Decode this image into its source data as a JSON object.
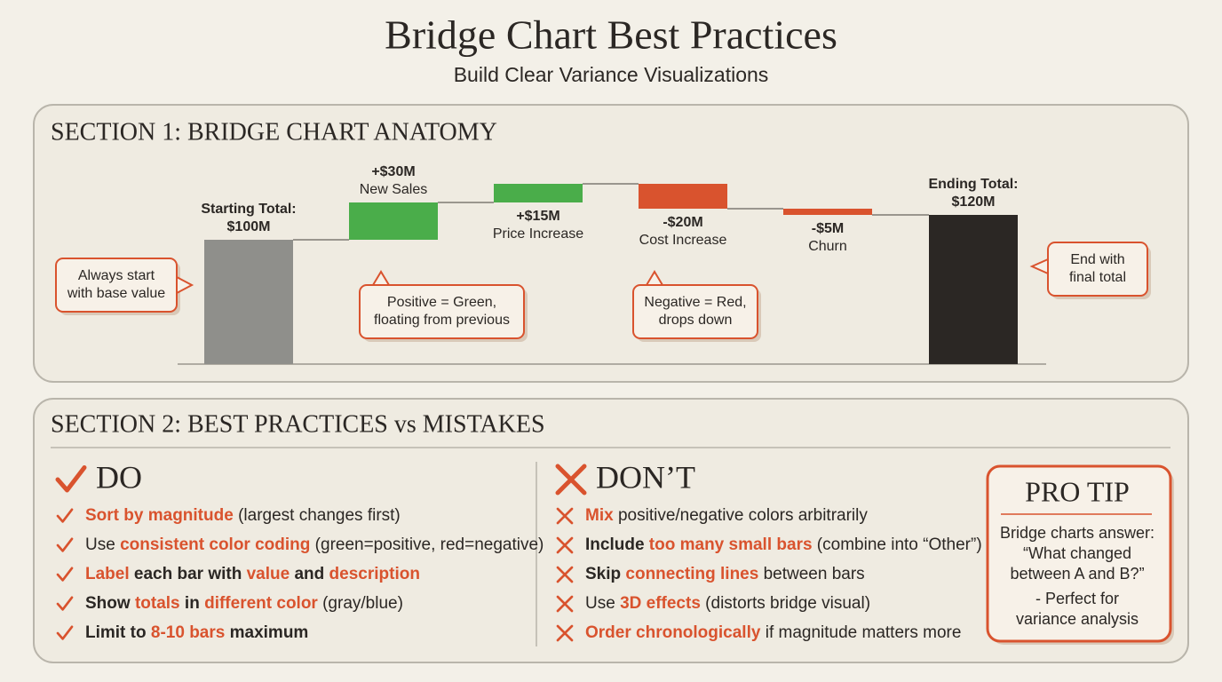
{
  "header": {
    "title": "Bridge Chart Best Practices",
    "subtitle": "Build Clear Variance Visualizations"
  },
  "section1": {
    "title": "SECTION 1: BRIDGE CHART ANATOMY"
  },
  "chart_data": {
    "type": "waterfall",
    "categories": [
      "Starting Total:",
      "New Sales",
      "Price Increase",
      "Cost Increase",
      "Churn",
      "Ending Total:"
    ],
    "values": [
      100,
      30,
      15,
      -20,
      -5,
      120
    ],
    "value_labels": [
      "$100M",
      "+$30M",
      "+$15M",
      "-$20M",
      "-$5M",
      "$120M"
    ],
    "totals": [
      true,
      false,
      false,
      false,
      false,
      true
    ],
    "colors": [
      "#8f8f8b",
      "#4aad4a",
      "#4aad4a",
      "#d9532e",
      "#d9532e",
      "#2b2724"
    ],
    "connectors": true,
    "annotations": [
      [
        "Always start",
        "with base value"
      ],
      [
        "Positive = Green,",
        "floating from previous"
      ],
      [
        "Negative = Red,",
        "drops down"
      ],
      [
        "End with",
        "final total"
      ]
    ]
  },
  "section2": {
    "title": "SECTION 2: BEST PRACTICES vs MISTAKES",
    "do": {
      "title": "DO",
      "items": [
        [
          {
            "text": "Sort by magnitude",
            "style": "highlight"
          },
          {
            "text": " (largest changes first)"
          }
        ],
        [
          {
            "text": "Use "
          },
          {
            "text": "consistent color coding",
            "style": "highlight"
          },
          {
            "text": " (green=positive, red=negative)"
          }
        ],
        [
          {
            "text": "Label",
            "style": "highlight"
          },
          {
            "text": " each bar with ",
            "style": "bold"
          },
          {
            "text": "value",
            "style": "highlight"
          },
          {
            "text": " and ",
            "style": "bold"
          },
          {
            "text": "description",
            "style": "highlight"
          }
        ],
        [
          {
            "text": "Show ",
            "style": "bold"
          },
          {
            "text": "totals",
            "style": "highlight"
          },
          {
            "text": " in ",
            "style": "bold"
          },
          {
            "text": "different color",
            "style": "highlight"
          },
          {
            "text": " (gray/blue)"
          }
        ],
        [
          {
            "text": "Limit to ",
            "style": "bold"
          },
          {
            "text": "8-10 bars",
            "style": "highlight"
          },
          {
            "text": " maximum",
            "style": "bold"
          }
        ]
      ]
    },
    "dont": {
      "title": "DON’T",
      "items": [
        [
          {
            "text": "Mix",
            "style": "highlight"
          },
          {
            "text": " positive/negative colors arbitrarily"
          }
        ],
        [
          {
            "text": "Include ",
            "style": "bold"
          },
          {
            "text": "too many small bars",
            "style": "highlight"
          },
          {
            "text": " (combine into “Other”)"
          }
        ],
        [
          {
            "text": "Skip ",
            "style": "bold"
          },
          {
            "text": "connecting lines",
            "style": "highlight"
          },
          {
            "text": " between bars"
          }
        ],
        [
          {
            "text": "Use "
          },
          {
            "text": "3D effects",
            "style": "highlight"
          },
          {
            "text": " (distorts bridge visual)"
          }
        ],
        [
          {
            "text": "Order chronologically",
            "style": "highlight"
          },
          {
            "text": " if magnitude matters more"
          }
        ]
      ]
    }
  },
  "pro_tip": {
    "title": "PRO TIP",
    "lines": [
      "Bridge charts answer:",
      "“What changed",
      "between A and B?”",
      "- Perfect for",
      "variance analysis"
    ]
  }
}
